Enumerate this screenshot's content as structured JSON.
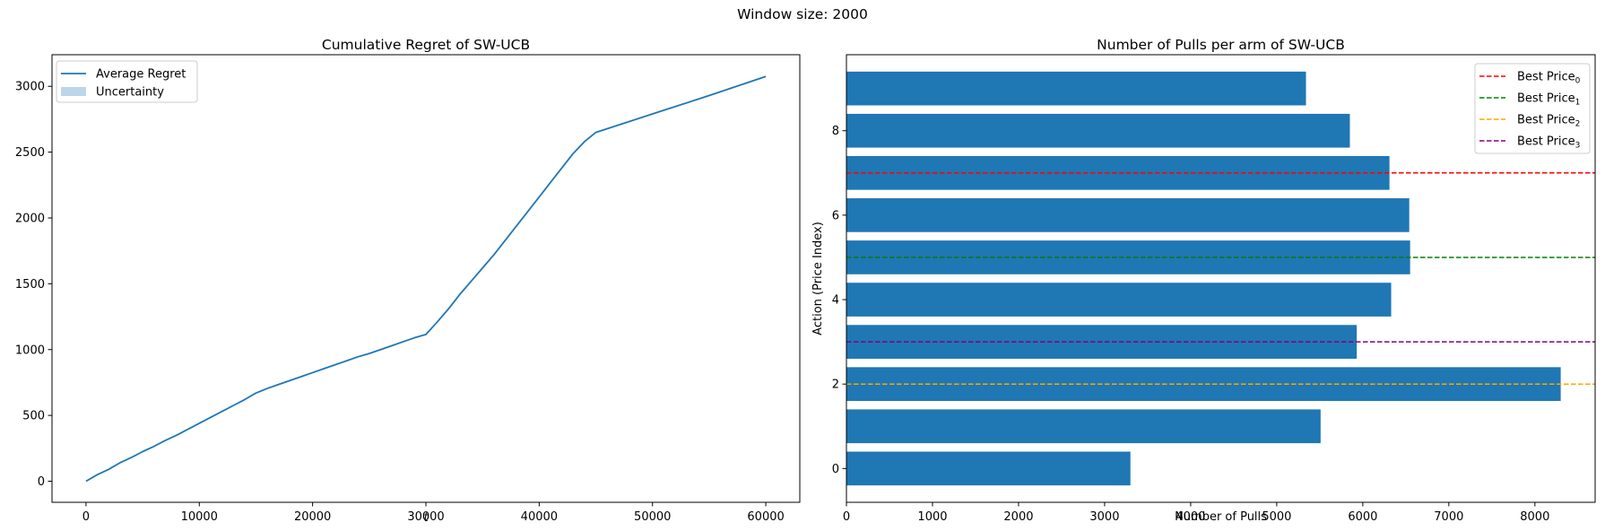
{
  "suptitle": "Window size: 2000",
  "chart_data": [
    {
      "type": "line",
      "title": "Cumulative Regret of SW-UCB",
      "xlabel": "t",
      "ylabel": "",
      "xlim": [
        -3000,
        63000
      ],
      "ylim": [
        -160,
        3240
      ],
      "xticks": [
        0,
        10000,
        20000,
        30000,
        40000,
        50000,
        60000
      ],
      "yticks": [
        0,
        500,
        1000,
        1500,
        2000,
        2500,
        3000
      ],
      "grid": false,
      "legend_position": "upper left",
      "legend": [
        {
          "label": "Average Regret",
          "kind": "line",
          "color": "#1f77b4"
        },
        {
          "label": "Uncertainty",
          "kind": "patch",
          "color": "#1f77b4"
        }
      ],
      "series": [
        {
          "name": "Average Regret",
          "color": "#1f77b4",
          "x": [
            0,
            1000,
            2000,
            3000,
            4000,
            5000,
            6000,
            7000,
            8000,
            9000,
            10000,
            11000,
            12000,
            13000,
            14000,
            15000,
            16000,
            17000,
            18000,
            19000,
            20000,
            21000,
            22000,
            23000,
            24000,
            25000,
            26000,
            27000,
            28000,
            29000,
            30000,
            31000,
            32000,
            33000,
            34000,
            35000,
            36000,
            37000,
            38000,
            39000,
            40000,
            41000,
            42000,
            43000,
            44000,
            45000,
            50000,
            55000,
            60000
          ],
          "y": [
            0,
            50,
            90,
            140,
            180,
            225,
            265,
            310,
            350,
            395,
            440,
            485,
            530,
            575,
            620,
            670,
            705,
            735,
            765,
            795,
            825,
            855,
            885,
            915,
            945,
            970,
            1000,
            1030,
            1060,
            1090,
            1115,
            1210,
            1310,
            1420,
            1520,
            1620,
            1720,
            1830,
            1940,
            2050,
            2160,
            2270,
            2380,
            2490,
            2580,
            2650,
            2790,
            2930,
            3075
          ]
        }
      ],
      "uncertainty": "band too narrow to be visible"
    },
    {
      "type": "bar",
      "orientation": "horizontal",
      "title": "Number of Pulls per arm of SW-UCB",
      "xlabel": "Number of Pulls",
      "ylabel": "Action (Price Index)",
      "xlim": [
        0,
        8700
      ],
      "ylim": [
        -0.8,
        9.8
      ],
      "xticks": [
        0,
        1000,
        2000,
        3000,
        4000,
        5000,
        6000,
        7000,
        8000
      ],
      "yticks": [
        0,
        2,
        4,
        6,
        8
      ],
      "grid": false,
      "legend_position": "upper right",
      "bar_color": "#1f77b4",
      "categories": [
        0,
        1,
        2,
        3,
        4,
        5,
        6,
        7,
        8,
        9
      ],
      "values": [
        3300,
        5510,
        8300,
        5930,
        6330,
        6550,
        6540,
        6310,
        5850,
        5340
      ],
      "reference_lines": [
        {
          "label_base": "Best Price",
          "subscript": "0",
          "y": 7,
          "color": "#ff0000"
        },
        {
          "label_base": "Best Price",
          "subscript": "1",
          "y": 5,
          "color": "#008000"
        },
        {
          "label_base": "Best Price",
          "subscript": "2",
          "y": 2,
          "color": "#ffa500"
        },
        {
          "label_base": "Best Price",
          "subscript": "3",
          "y": 3,
          "color": "#800080"
        }
      ]
    }
  ]
}
